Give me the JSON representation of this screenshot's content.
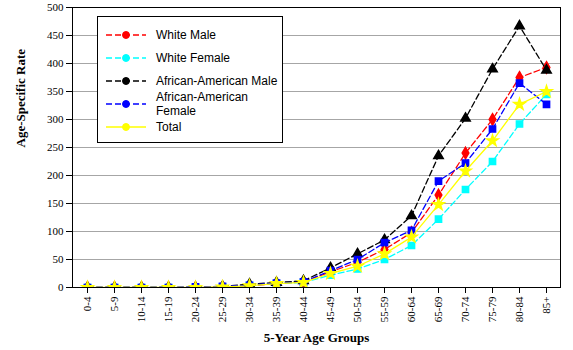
{
  "chart_data": {
    "type": "line",
    "xlabel": "5-Year Age Groups",
    "ylabel": "Age-Specific Rate",
    "categories": [
      "0-4",
      "5-9",
      "10-14",
      "15-19",
      "20-24",
      "25-29",
      "30-34",
      "35-39",
      "40-44",
      "45-49",
      "50-54",
      "55-59",
      "60-64",
      "65-69",
      "70-74",
      "75-79",
      "80-84",
      "85+"
    ],
    "series": [
      {
        "name": "White Male",
        "color": "#ff0000",
        "marker": "diamond",
        "line_style": "dashed",
        "values": [
          0,
          0,
          0,
          0,
          0,
          1,
          3,
          7,
          10,
          28,
          45,
          68,
          98,
          165,
          240,
          300,
          375,
          393
        ]
      },
      {
        "name": "White Female",
        "color": "#00ffff",
        "marker": "square",
        "line_style": "dashed",
        "values": [
          0,
          0,
          0,
          0,
          0,
          1,
          4,
          7,
          9,
          22,
          33,
          50,
          75,
          122,
          175,
          225,
          292,
          345
        ]
      },
      {
        "name": "African-American Male",
        "color": "#000000",
        "marker": "triangle",
        "line_style": "dashed",
        "values": [
          0,
          0,
          0,
          0,
          0,
          2,
          6,
          9,
          12,
          35,
          60,
          85,
          128,
          235,
          302,
          390,
          467,
          388
        ]
      },
      {
        "name": "African-American Female",
        "color": "#0000ff",
        "marker": "square",
        "line_style": "dashed",
        "values": [
          0,
          0,
          0,
          0,
          1,
          2,
          4,
          8,
          10,
          30,
          50,
          80,
          102,
          190,
          222,
          283,
          365,
          327
        ]
      },
      {
        "name": "Total",
        "color": "#ffff00",
        "marker": "star",
        "line_style": "solid",
        "values": [
          0,
          0,
          0,
          0,
          0,
          1,
          3,
          7,
          9,
          25,
          38,
          60,
          90,
          148,
          208,
          262,
          327,
          350
        ]
      }
    ],
    "ylim": [
      0,
      500
    ],
    "yticks": [
      0,
      50,
      100,
      150,
      200,
      250,
      300,
      350,
      400,
      450,
      500
    ],
    "grid": true,
    "legend": "top-left"
  }
}
